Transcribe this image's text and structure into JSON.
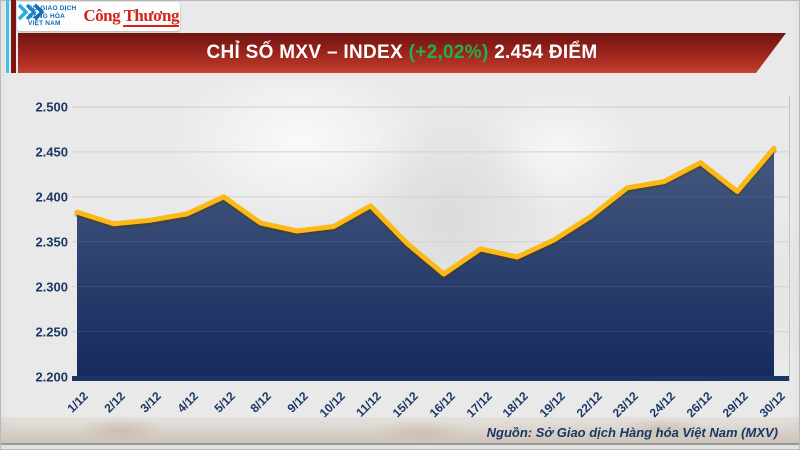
{
  "header": {
    "mxv_logo": {
      "lines": [
        "SỞ GIAO DỊCH",
        "HÀNG HÓA",
        "VIỆT NAM"
      ]
    },
    "congthuong_logo": "Công Thương",
    "banner": {
      "title": "CHỈ SỐ MXV – INDEX",
      "change": "(+2,02%)",
      "value": "2.454 ĐIỂM"
    }
  },
  "chart_data": {
    "type": "area",
    "title": "CHỈ SỐ MXV – INDEX (+2,02%) 2.454 ĐIỂM",
    "x": [
      "1/12",
      "2/12",
      "3/12",
      "4/12",
      "5/12",
      "8/12",
      "9/12",
      "10/12",
      "11/12",
      "15/12",
      "16/12",
      "17/12",
      "18/12",
      "19/12",
      "22/12",
      "23/12",
      "24/12",
      "26/12",
      "29/12",
      "30/12"
    ],
    "values": [
      2.383,
      2.37,
      2.374,
      2.381,
      2.4,
      2.371,
      2.362,
      2.367,
      2.39,
      2.348,
      2.314,
      2.342,
      2.333,
      2.352,
      2.378,
      2.41,
      2.417,
      2.438,
      2.406,
      2.454
    ],
    "ylim": [
      2.2,
      2.5
    ],
    "ytick_step": 0.05,
    "grid": true,
    "legend": false,
    "xlabel": "",
    "ylabel": "",
    "colors": {
      "line": "#fdb913",
      "fill_top": "#45597f",
      "fill_bottom": "#152a5e",
      "axis": "#1b3764",
      "gridline": "#cfcfcf",
      "tick_text": "#1b3764"
    }
  },
  "footer": {
    "source": "Nguồn: Sở Giao dịch Hàng hóa Việt Nam (MXV)"
  }
}
